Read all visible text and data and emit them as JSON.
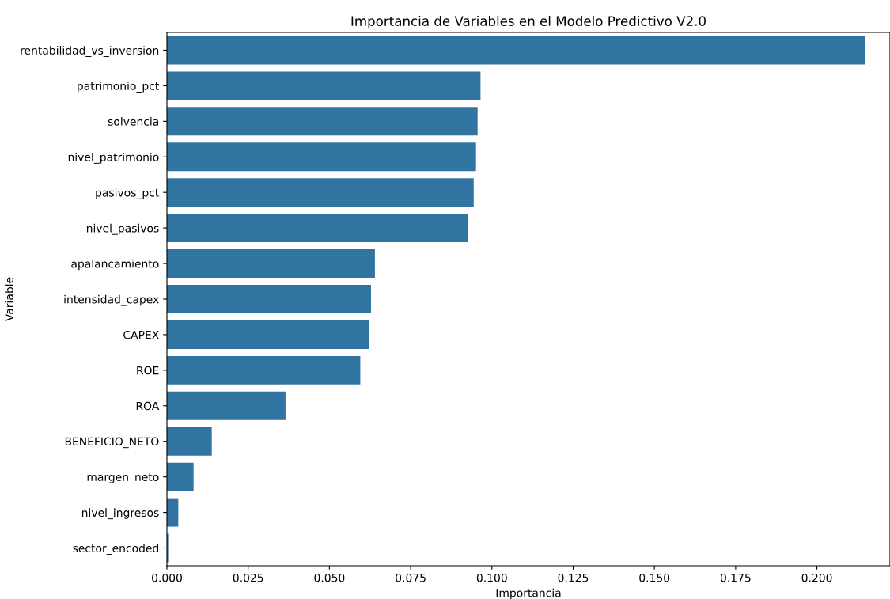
{
  "chart_data": {
    "type": "bar",
    "orientation": "horizontal",
    "title": "Importancia de Variables en el Modelo Predictivo V2.0",
    "xlabel": "Importancia",
    "ylabel": "Variable",
    "categories": [
      "rentabilidad_vs_inversion",
      "patrimonio_pct",
      "solvencia",
      "nivel_patrimonio",
      "pasivos_pct",
      "nivel_pasivos",
      "apalancamiento",
      "intensidad_capex",
      "CAPEX",
      "ROE",
      "ROA",
      "BENEFICIO_NETO",
      "margen_neto",
      "nivel_ingresos",
      "sector_encoded"
    ],
    "values": [
      0.2148,
      0.0965,
      0.0956,
      0.0951,
      0.0944,
      0.0926,
      0.064,
      0.0628,
      0.0623,
      0.0595,
      0.0365,
      0.0138,
      0.0082,
      0.0035,
      0.0004
    ],
    "color": "#3274a1",
    "xlim": [
      0,
      0.2225
    ],
    "xticks": [
      {
        "value": 0,
        "label": "0.000"
      },
      {
        "value": 0.025,
        "label": "0.025"
      },
      {
        "value": 0.05,
        "label": "0.050"
      },
      {
        "value": 0.075,
        "label": "0.075"
      },
      {
        "value": 0.1,
        "label": "0.100"
      },
      {
        "value": 0.125,
        "label": "0.125"
      },
      {
        "value": 0.15,
        "label": "0.150"
      },
      {
        "value": 0.175,
        "label": "0.175"
      },
      {
        "value": 0.2,
        "label": "0.200"
      }
    ],
    "grid": false,
    "legend": false
  }
}
